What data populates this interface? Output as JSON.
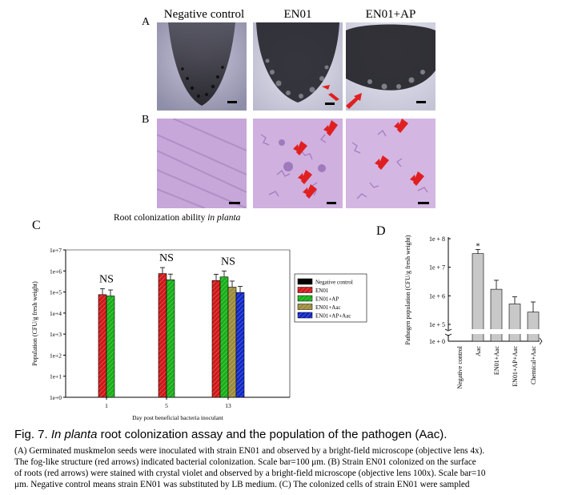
{
  "panel_letters": {
    "a": "A",
    "b": "B",
    "c": "C",
    "d": "D"
  },
  "panel_a": {
    "headers": [
      "Negative control",
      "EN01",
      "EN01+AP"
    ],
    "description": ""
  },
  "panel_c": {
    "title_prefix": "Root colonization ability ",
    "title_italic": "in planta"
  },
  "chart_data": [
    {
      "type": "bar",
      "title": "",
      "xlabel": "Day post beneficial bacteria inoculant",
      "ylabel": "Population (CFU/g fresh weight)",
      "y_scale": "log",
      "ylim": [
        1,
        10000000
      ],
      "y_tick_labels": [
        "1e+0",
        "1e+1",
        "1e+2",
        "1e+3",
        "1e+4",
        "1e+5",
        "1e+6",
        "1e+7"
      ],
      "categories": [
        "1",
        "5",
        "13"
      ],
      "annotations": [
        "NS",
        "NS",
        "NS"
      ],
      "legend_position": "right",
      "series": [
        {
          "name": "Negative control",
          "color": "#000000",
          "values": [
            0,
            0,
            0
          ],
          "errors": [
            0,
            0,
            0
          ]
        },
        {
          "name": "EN01",
          "color": "#d01818",
          "values": [
            75000,
            750000,
            350000
          ],
          "errors": [
            70000,
            700000,
            350000
          ]
        },
        {
          "name": "EN01+AP",
          "color": "#18b018",
          "values": [
            65000,
            380000,
            520000
          ],
          "errors": [
            60000,
            330000,
            480000
          ]
        },
        {
          "name": "EN01+Aac",
          "color": "#9c8c3c",
          "values": [
            0,
            0,
            170000
          ],
          "errors": [
            0,
            0,
            160000
          ]
        },
        {
          "name": "EN01+AP+Aac",
          "color": "#1028c8",
          "values": [
            0,
            0,
            95000
          ],
          "errors": [
            0,
            0,
            90000
          ]
        }
      ]
    },
    {
      "type": "bar",
      "title": "",
      "xlabel": "",
      "ylabel": "Pathogen population (CFU/g fresh weight)",
      "y_scale": "log",
      "y_tick_labels": [
        "1e + 0",
        "1e + 5",
        "1e + 6",
        "1e + 7",
        "1e + 8"
      ],
      "categories": [
        "Negative control",
        "Aac",
        "EN01+Aac",
        "EN01+AP+Aac",
        "Chemical+Aac"
      ],
      "values": [
        0,
        30000000,
        1700000,
        520000,
        270000
      ],
      "errors": [
        0,
        12000000,
        1800000,
        400000,
        340000
      ],
      "annotations": [
        "",
        "*",
        "",
        "",
        ""
      ],
      "color": "#c8c8c8"
    }
  ],
  "caption": {
    "fig_label": "Fig. 7. ",
    "title_italic": "In planta",
    "title_rest": " root colonization assay and the population of the pathogen (Aac).",
    "lines": [
      "(A) Germinated muskmelon seeds were inoculated with strain EN01 and observed by a bright-field microscope (objective lens 4x).",
      "The fog-like structure (red arrows) indicated bacterial colonization. Scale bar=100 μm. (B) Strain EN01 colonized on the surface",
      "of roots (red arrows) were stained with crystal violet and observed by a bright-field microscope (objective lens 100x). Scale bar=10",
      "μm. Negative control means strain EN01 was substituted by LB medium. (C) The colonized cells of strain EN01 were sampled"
    ]
  }
}
